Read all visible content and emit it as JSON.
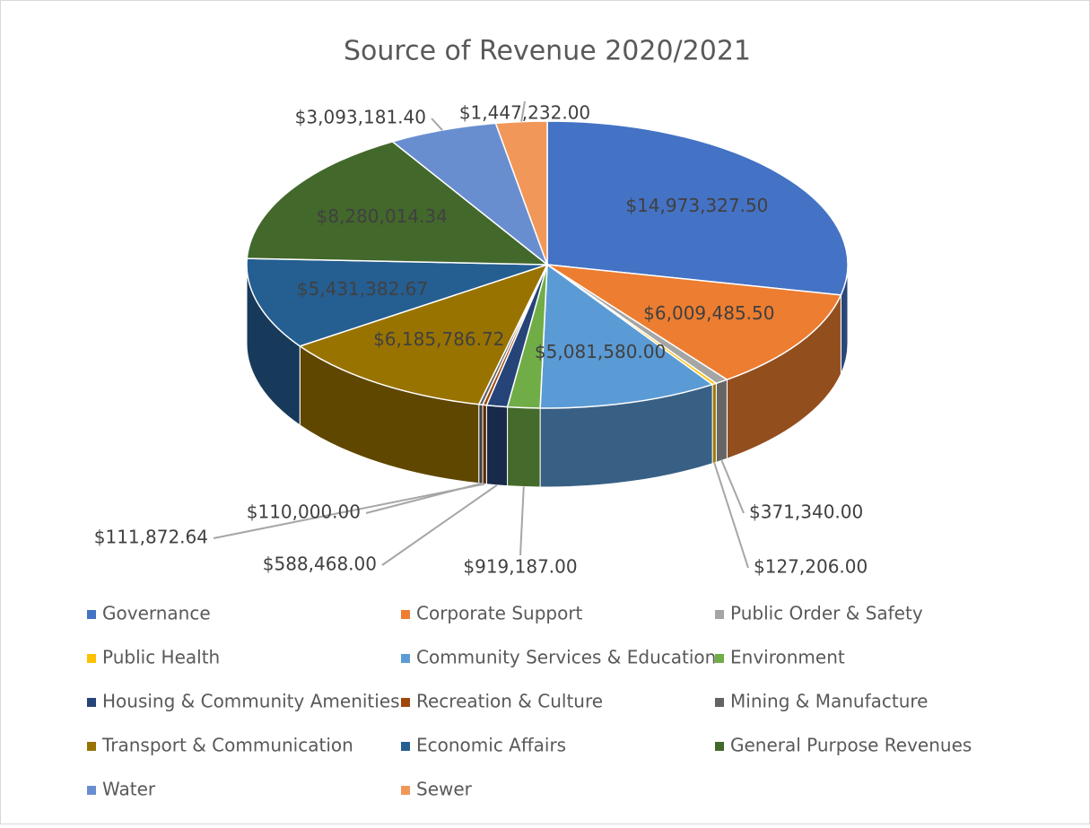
{
  "chart_data": {
    "type": "pie3d",
    "title": "Source of Revenue 2020/2021",
    "categories": [
      "Governance",
      "Corporate Support",
      "Public Order & Safety",
      "Public Health",
      "Community Services & Education",
      "Environment",
      "Housing & Community Amenities",
      "Recreation & Culture",
      "Mining & Manufacture",
      "Transport & Communication",
      "Economic Affairs",
      "General Purpose Revenues",
      "Water",
      "Sewer"
    ],
    "values": [
      14973327.5,
      6009485.5,
      371340,
      127206,
      5081580,
      919187,
      588468,
      111872.64,
      110000,
      6185786.72,
      5431382.67,
      8280014.34,
      3093181.4,
      1447232
    ],
    "value_labels": [
      "$14,973,327.50",
      "$6,009,485.50",
      "$371,340.00",
      "$127,206.00",
      "$5,081,580.00",
      "$919,187.00",
      "$588,468.00",
      "$111,872.64",
      "$110,000.00",
      "$6,185,786.72",
      "$5,431,382.67",
      "$8,280,014.34",
      "$3,093,181.40",
      "$1,447,232.00"
    ],
    "colors": [
      "#4472c4",
      "#ed7d31",
      "#a5a5a5",
      "#ffc000",
      "#5b9bd5",
      "#70ad47",
      "#264478",
      "#9e480e",
      "#636363",
      "#997300",
      "#255e91",
      "#43682b",
      "#698ed0",
      "#f1975a"
    ],
    "legend": "bottom"
  }
}
